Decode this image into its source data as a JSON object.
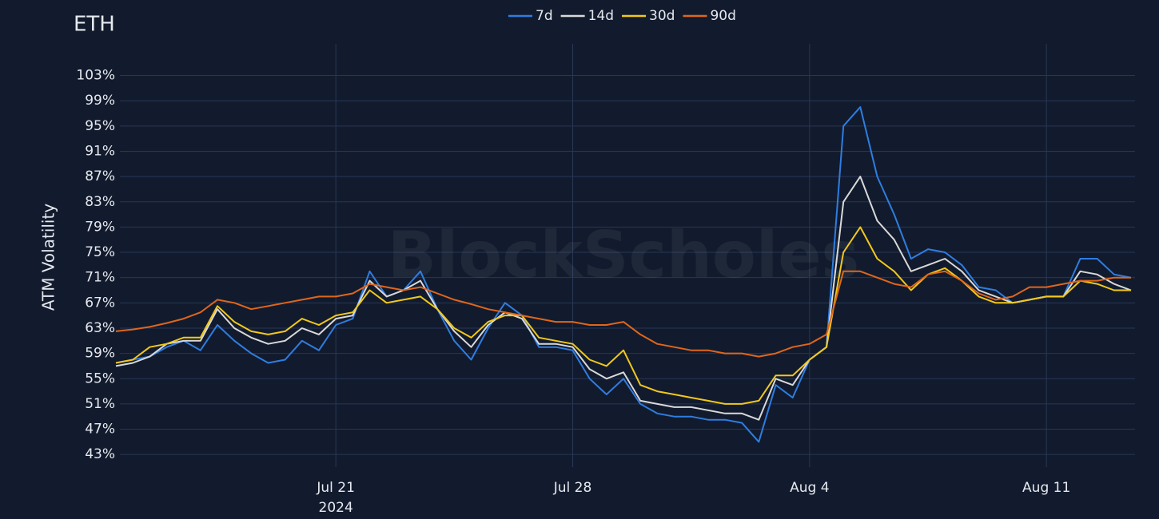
{
  "chart_data": {
    "type": "line",
    "title": "ETH",
    "ylabel": "ATM Volatility",
    "watermark": "BlockScholes",
    "x": [
      "2024-07-14T12:00",
      "2024-07-15T00:00",
      "2024-07-15T12:00",
      "2024-07-16T00:00",
      "2024-07-16T12:00",
      "2024-07-17T00:00",
      "2024-07-17T12:00",
      "2024-07-18T00:00",
      "2024-07-18T12:00",
      "2024-07-19T00:00",
      "2024-07-19T12:00",
      "2024-07-20T00:00",
      "2024-07-20T12:00",
      "2024-07-21T00:00",
      "2024-07-21T12:00",
      "2024-07-22T00:00",
      "2024-07-22T12:00",
      "2024-07-23T00:00",
      "2024-07-23T12:00",
      "2024-07-24T00:00",
      "2024-07-24T12:00",
      "2024-07-25T00:00",
      "2024-07-25T12:00",
      "2024-07-26T00:00",
      "2024-07-26T12:00",
      "2024-07-27T00:00",
      "2024-07-27T12:00",
      "2024-07-28T00:00",
      "2024-07-28T12:00",
      "2024-07-29T00:00",
      "2024-07-29T12:00",
      "2024-07-30T00:00",
      "2024-07-30T12:00",
      "2024-07-31T00:00",
      "2024-07-31T12:00",
      "2024-08-01T00:00",
      "2024-08-01T12:00",
      "2024-08-02T00:00",
      "2024-08-02T12:00",
      "2024-08-03T00:00",
      "2024-08-03T12:00",
      "2024-08-04T00:00",
      "2024-08-04T12:00",
      "2024-08-05T00:00",
      "2024-08-05T12:00",
      "2024-08-06T00:00",
      "2024-08-06T12:00",
      "2024-08-07T00:00",
      "2024-08-07T12:00",
      "2024-08-08T00:00",
      "2024-08-08T12:00",
      "2024-08-09T00:00",
      "2024-08-09T12:00",
      "2024-08-10T00:00",
      "2024-08-10T12:00",
      "2024-08-11T00:00",
      "2024-08-11T12:00",
      "2024-08-12T00:00",
      "2024-08-12T12:00",
      "2024-08-13T00:00",
      "2024-08-13T12:00"
    ],
    "series": [
      {
        "name": "7d",
        "color": "#2f7de1",
        "values": [
          57.5,
          58,
          58.5,
          60,
          61,
          59.5,
          63.5,
          61,
          59,
          57.5,
          58,
          61,
          59.5,
          63.5,
          64.5,
          72,
          68,
          69,
          72,
          66,
          61,
          58,
          63,
          67,
          65,
          60,
          60,
          59.5,
          55,
          52.5,
          55,
          51,
          49.5,
          49,
          49,
          48.5,
          48.5,
          48,
          45,
          54,
          52,
          58,
          60,
          95,
          98,
          87,
          81,
          74,
          75.5,
          75,
          73,
          69.5,
          69,
          67,
          67.5,
          68,
          68,
          74,
          74,
          71.5,
          71
        ]
      },
      {
        "name": "14d",
        "color": "#d9d9d9",
        "values": [
          57,
          57.5,
          58.5,
          60.5,
          61,
          61,
          66,
          63,
          61.5,
          60.5,
          61,
          63,
          62,
          64.5,
          65,
          70.5,
          68,
          69,
          70.5,
          66,
          62.5,
          60,
          63.5,
          65.5,
          64.5,
          60.5,
          60.5,
          60,
          56.5,
          55,
          56,
          51.5,
          51,
          50.5,
          50.5,
          50,
          49.5,
          49.5,
          48.5,
          55,
          54,
          58,
          60,
          83,
          87,
          80,
          77,
          72,
          73,
          74,
          72,
          69,
          68,
          67,
          67.5,
          68,
          68,
          72,
          71.5,
          70,
          69
        ]
      },
      {
        "name": "30d",
        "color": "#f2c81b",
        "values": [
          57.5,
          58,
          60,
          60.5,
          61.5,
          61.5,
          66.5,
          64,
          62.5,
          62,
          62.5,
          64.5,
          63.5,
          65,
          65.5,
          69,
          67,
          67.5,
          68,
          66,
          63,
          61.5,
          64,
          65,
          65,
          61.5,
          61,
          60.5,
          58,
          57,
          59.5,
          54,
          53,
          52.5,
          52,
          51.5,
          51,
          51,
          51.5,
          55.5,
          55.5,
          58,
          60,
          75,
          79,
          74,
          72,
          69,
          71.5,
          72.5,
          70.5,
          68,
          67,
          67,
          67.5,
          68,
          68,
          70.5,
          70,
          69,
          69
        ]
      },
      {
        "name": "90d",
        "color": "#e0661b",
        "values": [
          62.5,
          62.8,
          63.2,
          63.8,
          64.5,
          65.5,
          67.5,
          67,
          66,
          66.5,
          67,
          67.5,
          68,
          68,
          68.5,
          70,
          69.5,
          69,
          69.5,
          68.5,
          67.5,
          66.8,
          66,
          65.5,
          65,
          64.5,
          64,
          64,
          63.5,
          63.5,
          64,
          62,
          60.5,
          60,
          59.5,
          59.5,
          59,
          59,
          58.5,
          59,
          60,
          60.5,
          62,
          72,
          72,
          71,
          70,
          69.5,
          71.5,
          72,
          70.5,
          68.5,
          67.5,
          68,
          69.5,
          69.5,
          70,
          70.5,
          70.5,
          71,
          71
        ]
      }
    ],
    "xlim": [
      "2024-07-14T12:00",
      "2024-08-13T12:00"
    ],
    "xticks": [
      {
        "value": "2024-07-21T00:00",
        "label": "Jul 21"
      },
      {
        "value": "2024-07-28T00:00",
        "label": "Jul 28"
      },
      {
        "value": "2024-08-04T00:00",
        "label": "Aug 4"
      },
      {
        "value": "2024-08-11T00:00",
        "label": "Aug 11"
      }
    ],
    "xaxis_year": "2024",
    "ylim": [
      41,
      108
    ],
    "yticks": [
      {
        "value": 43,
        "label": "43%"
      },
      {
        "value": 47,
        "label": "47%"
      },
      {
        "value": 51,
        "label": "51%"
      },
      {
        "value": 55,
        "label": "55%"
      },
      {
        "value": 59,
        "label": "59%"
      },
      {
        "value": 63,
        "label": "63%"
      },
      {
        "value": 67,
        "label": "67%"
      },
      {
        "value": 71,
        "label": "71%"
      },
      {
        "value": 75,
        "label": "75%"
      },
      {
        "value": 79,
        "label": "79%"
      },
      {
        "value": 83,
        "label": "83%"
      },
      {
        "value": 87,
        "label": "87%"
      },
      {
        "value": 91,
        "label": "91%"
      },
      {
        "value": 95,
        "label": "95%"
      },
      {
        "value": 99,
        "label": "99%"
      },
      {
        "value": 103,
        "label": "103%"
      }
    ],
    "grid": true,
    "legend": "top"
  }
}
